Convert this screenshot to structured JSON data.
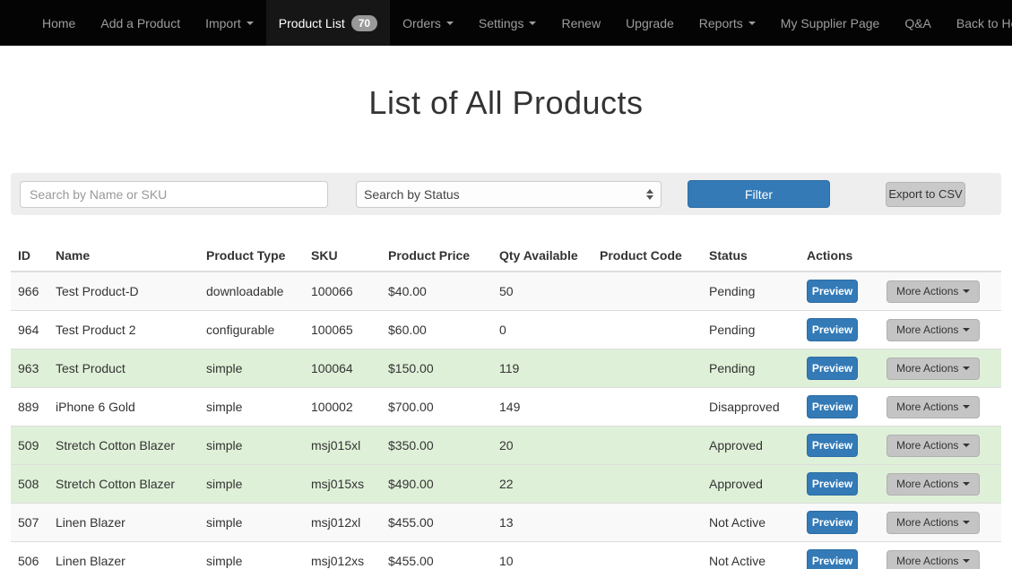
{
  "navbar": {
    "items": [
      {
        "label": "Home",
        "caret": false,
        "active": false
      },
      {
        "label": "Add a Product",
        "caret": false,
        "active": false
      },
      {
        "label": "Import",
        "caret": true,
        "active": false
      },
      {
        "label": "Product List",
        "caret": false,
        "active": true,
        "badge": "70"
      },
      {
        "label": "Orders",
        "caret": true,
        "active": false
      },
      {
        "label": "Settings",
        "caret": true,
        "active": false
      },
      {
        "label": "Renew",
        "caret": false,
        "active": false
      },
      {
        "label": "Upgrade",
        "caret": false,
        "active": false
      },
      {
        "label": "Reports",
        "caret": true,
        "active": false
      },
      {
        "label": "My Supplier Page",
        "caret": false,
        "active": false
      },
      {
        "label": "Q&A",
        "caret": false,
        "active": false
      },
      {
        "label": "Back to Home Page",
        "caret": false,
        "active": false
      }
    ]
  },
  "page": {
    "title": "List of All Products"
  },
  "filters": {
    "search_placeholder": "Search by Name or SKU",
    "status_value": "Search by Status",
    "filter_button": "Filter",
    "export_button": "Export to CSV"
  },
  "table": {
    "headers": [
      "ID",
      "Name",
      "Product Type",
      "SKU",
      "Product Price",
      "Qty Available",
      "Product Code",
      "Status",
      "Actions"
    ],
    "preview_label": "Preview",
    "more_actions_label": "More Actions",
    "rows": [
      {
        "id": "966",
        "name": "Test Product-D",
        "type": "downloadable",
        "sku": "100066",
        "price": "$40.00",
        "qty": "50",
        "code": "",
        "status": "Pending",
        "highlight": "stripe"
      },
      {
        "id": "964",
        "name": "Test Product 2",
        "type": "configurable",
        "sku": "100065",
        "price": "$60.00",
        "qty": "0",
        "code": "",
        "status": "Pending",
        "highlight": ""
      },
      {
        "id": "963",
        "name": "Test Product",
        "type": "simple",
        "sku": "100064",
        "price": "$150.00",
        "qty": "119",
        "code": "",
        "status": "Pending",
        "highlight": "success"
      },
      {
        "id": "889",
        "name": "iPhone 6 Gold",
        "type": "simple",
        "sku": "100002",
        "price": "$700.00",
        "qty": "149",
        "code": "",
        "status": "Disapproved",
        "highlight": ""
      },
      {
        "id": "509",
        "name": "Stretch Cotton Blazer",
        "type": "simple",
        "sku": "msj015xl",
        "price": "$350.00",
        "qty": "20",
        "code": "",
        "status": "Approved",
        "highlight": "success"
      },
      {
        "id": "508",
        "name": "Stretch Cotton Blazer",
        "type": "simple",
        "sku": "msj015xs",
        "price": "$490.00",
        "qty": "22",
        "code": "",
        "status": "Approved",
        "highlight": "success"
      },
      {
        "id": "507",
        "name": "Linen Blazer",
        "type": "simple",
        "sku": "msj012xl",
        "price": "$455.00",
        "qty": "13",
        "code": "",
        "status": "Not Active",
        "highlight": "stripe"
      },
      {
        "id": "506",
        "name": "Linen Blazer",
        "type": "simple",
        "sku": "msj012xs",
        "price": "$455.00",
        "qty": "10",
        "code": "",
        "status": "Not Active",
        "highlight": ""
      }
    ]
  },
  "colors": {
    "navbar_bg": "#040404",
    "navbar_active_bg": "#161616",
    "nav_text": "#9d9d9d",
    "accent_blue": "#337ab7",
    "success_row": "#dff0d8",
    "stripe_row": "#f9f9f9",
    "well_bg": "#eeeeee"
  }
}
